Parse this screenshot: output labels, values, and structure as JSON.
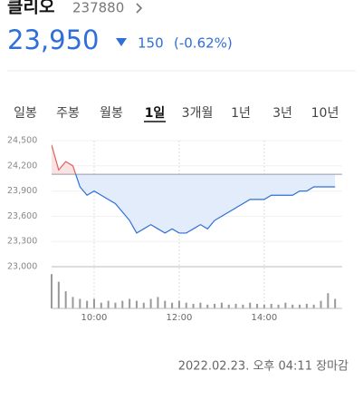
{
  "header": {
    "name": "클리오",
    "code": "237880",
    "price": "23,950",
    "change": "150",
    "change_pct": "(-0.62%)"
  },
  "tabs": [
    "일봉",
    "주봉",
    "월봉",
    "1일",
    "3개월",
    "1년",
    "3년",
    "10년"
  ],
  "selected_tab": 3,
  "chart_data": {
    "type": "line",
    "color": "#2f6fd8",
    "up_color": "#e06060",
    "baseline": 24100,
    "x": [
      540,
      550,
      560,
      570,
      580,
      590,
      600,
      610,
      620,
      630,
      640,
      650,
      660,
      670,
      680,
      690,
      700,
      710,
      720,
      730,
      740,
      750,
      760,
      770,
      780,
      790,
      800,
      810,
      820,
      830,
      840,
      850,
      860,
      870,
      880,
      890,
      900,
      910,
      920,
      930,
      940
    ],
    "values": [
      24450,
      24150,
      24250,
      24200,
      23950,
      23850,
      23900,
      23850,
      23800,
      23750,
      23650,
      23550,
      23400,
      23450,
      23500,
      23450,
      23400,
      23450,
      23400,
      23400,
      23450,
      23500,
      23450,
      23550,
      23600,
      23650,
      23700,
      23750,
      23800,
      23800,
      23800,
      23850,
      23850,
      23850,
      23850,
      23900,
      23900,
      23950,
      23950,
      23950,
      23950
    ],
    "volume": [
      90,
      70,
      45,
      30,
      25,
      20,
      25,
      15,
      20,
      15,
      20,
      25,
      20,
      15,
      25,
      30,
      20,
      15,
      20,
      15,
      12,
      15,
      10,
      12,
      15,
      10,
      12,
      10,
      15,
      12,
      10,
      12,
      10,
      15,
      10,
      10,
      12,
      10,
      20,
      40,
      25
    ],
    "volume_ylim": [
      0,
      100
    ],
    "xlim": [
      540,
      950
    ],
    "xticks": [
      {
        "value": 600,
        "label": "10:00"
      },
      {
        "value": 720,
        "label": "12:00"
      },
      {
        "value": 840,
        "label": "14:00"
      }
    ],
    "ylim": [
      23000,
      24500
    ],
    "yticks": [
      {
        "value": 24500,
        "label": "24,500"
      },
      {
        "value": 24200,
        "label": "24,200"
      },
      {
        "value": 23900,
        "label": "23,900"
      },
      {
        "value": 23600,
        "label": "23,600"
      },
      {
        "value": 23300,
        "label": "23,300"
      },
      {
        "value": 23000,
        "label": "23,000"
      }
    ]
  },
  "footer": {
    "timestamp": "2022.02.23. 오후 04:11 장마감"
  }
}
